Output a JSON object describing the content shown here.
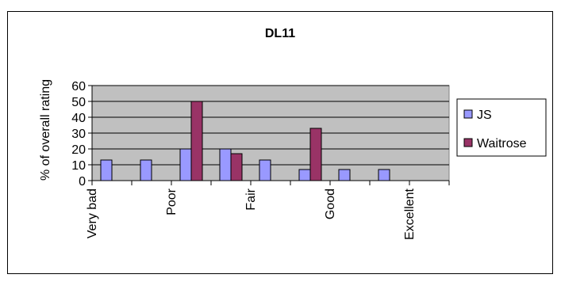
{
  "chart_data": {
    "type": "bar",
    "title": "DL11",
    "xlabel": "",
    "ylabel": "% of overall rating",
    "ylim": [
      0,
      60
    ],
    "yticks": [
      0,
      10,
      20,
      30,
      40,
      50,
      60
    ],
    "grid": true,
    "legend_position": "right",
    "categories": [
      "Very bad",
      "",
      "Poor",
      "",
      "Fair",
      "",
      "Good",
      "",
      "Excellent"
    ],
    "series": [
      {
        "name": "JS",
        "color": "#9999ff",
        "values": [
          13,
          13,
          20,
          20,
          13,
          7,
          7,
          7,
          0
        ]
      },
      {
        "name": "Waitrose",
        "color": "#993366",
        "values": [
          0,
          0,
          50,
          17,
          0,
          33,
          0,
          0,
          0
        ]
      }
    ],
    "plot_background": "#c0c0c0"
  }
}
